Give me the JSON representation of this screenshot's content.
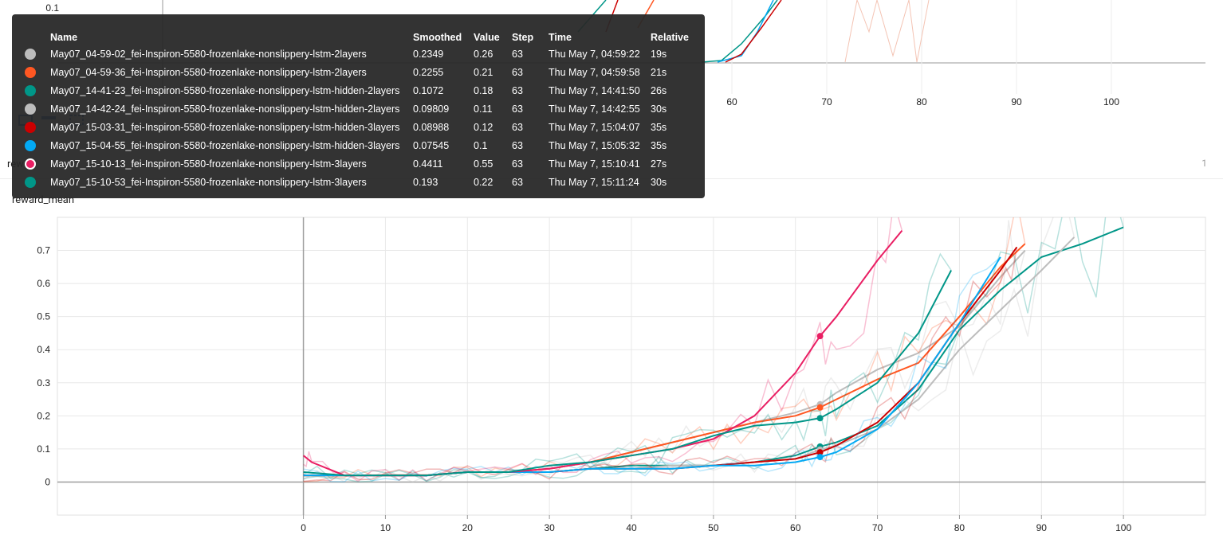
{
  "top_chart": {
    "ytick_labels": [
      "0.1"
    ],
    "xtick_labels": [
      "60",
      "70",
      "80",
      "90",
      "100"
    ],
    "xtick_values": [
      60,
      70,
      80,
      90,
      100
    ]
  },
  "bottom_chart": {
    "title": "reward_mean",
    "title_stub": "rew",
    "page_number": "1"
  },
  "tooltip": {
    "headers": {
      "name": "Name",
      "smoothed": "Smoothed",
      "value": "Value",
      "step": "Step",
      "time": "Time",
      "relative": "Relative"
    },
    "rows": [
      {
        "name": "May07_04-59-02_fei-Inspiron-5580-frozenlake-nonslippery-lstm-2layers",
        "smoothed": "0.2349",
        "value": "0.26",
        "step": "63",
        "time": "Thu May 7, 04:59:22",
        "relative": "19s",
        "color": "#bdbdbd"
      },
      {
        "name": "May07_04-59-36_fei-Inspiron-5580-frozenlake-nonslippery-lstm-2layers",
        "smoothed": "0.2255",
        "value": "0.21",
        "step": "63",
        "time": "Thu May 7, 04:59:58",
        "relative": "21s",
        "color": "#ff5722"
      },
      {
        "name": "May07_14-41-23_fei-Inspiron-5580-frozenlake-nonslippery-lstm-hidden-2layers",
        "smoothed": "0.1072",
        "value": "0.18",
        "step": "63",
        "time": "Thu May 7, 14:41:50",
        "relative": "26s",
        "color": "#009688"
      },
      {
        "name": "May07_14-42-24_fei-Inspiron-5580-frozenlake-nonslippery-lstm-hidden-2layers",
        "smoothed": "0.09809",
        "value": "0.11",
        "step": "63",
        "time": "Thu May 7, 14:42:55",
        "relative": "30s",
        "color": "#bdbdbd"
      },
      {
        "name": "May07_15-03-31_fei-Inspiron-5580-frozenlake-nonslippery-lstm-hidden-3layers",
        "smoothed": "0.08988",
        "value": "0.12",
        "step": "63",
        "time": "Thu May 7, 15:04:07",
        "relative": "35s",
        "color": "#cc0000"
      },
      {
        "name": "May07_15-04-55_fei-Inspiron-5580-frozenlake-nonslippery-lstm-hidden-3layers",
        "smoothed": "0.07545",
        "value": "0.1",
        "step": "63",
        "time": "Thu May 7, 15:05:32",
        "relative": "35s",
        "color": "#03a9f4"
      },
      {
        "name": "May07_15-10-13_fei-Inspiron-5580-frozenlake-nonslippery-lstm-3layers",
        "smoothed": "0.4411",
        "value": "0.55",
        "step": "63",
        "time": "Thu May 7, 15:10:41",
        "relative": "27s",
        "color": "#e91e63",
        "ring": true
      },
      {
        "name": "May07_15-10-53_fei-Inspiron-5580-frozenlake-nonslippery-lstm-3layers",
        "smoothed": "0.193",
        "value": "0.22",
        "step": "63",
        "time": "Thu May 7, 15:11:24",
        "relative": "30s",
        "color": "#009688"
      }
    ]
  },
  "chart_data": {
    "type": "line",
    "ylabel": "reward_mean",
    "xlim": [
      -30,
      110
    ],
    "ylim": [
      -0.1,
      0.8
    ],
    "xticks": [
      0,
      10,
      20,
      30,
      40,
      50,
      60,
      70,
      80,
      90,
      100
    ],
    "yticks": [
      0,
      0.1,
      0.2,
      0.3,
      0.4,
      0.5,
      0.6,
      0.7
    ],
    "ytick_labels": [
      "0",
      "0.1",
      "0.2",
      "0.3",
      "0.4",
      "0.5",
      "0.6",
      "0.7"
    ],
    "xtick_labels": [
      "0",
      "10",
      "20",
      "30",
      "40",
      "50",
      "60",
      "70",
      "80",
      "90",
      "100"
    ],
    "highlight_step": 63,
    "grid": true,
    "series": [
      {
        "name": "May07_04-59-02_fei-Inspiron-5580-frozenlake-nonslippery-lstm-2layers",
        "color": "#bdbdbd",
        "x": [
          0,
          5,
          10,
          15,
          20,
          25,
          30,
          35,
          40,
          45,
          50,
          55,
          60,
          63,
          65,
          70,
          75,
          80,
          85,
          88
        ],
        "y": [
          0.02,
          0.02,
          0.02,
          0.02,
          0.03,
          0.03,
          0.04,
          0.06,
          0.09,
          0.12,
          0.15,
          0.18,
          0.21,
          0.235,
          0.27,
          0.34,
          0.39,
          0.47,
          0.62,
          0.7
        ]
      },
      {
        "name": "May07_04-59-36_fei-Inspiron-5580-frozenlake-nonslippery-lstm-2layers",
        "color": "#ff5722",
        "x": [
          0,
          5,
          10,
          15,
          20,
          25,
          30,
          35,
          40,
          45,
          50,
          55,
          60,
          63,
          65,
          70,
          75,
          80,
          85,
          88
        ],
        "y": [
          0.02,
          0.02,
          0.02,
          0.02,
          0.03,
          0.03,
          0.04,
          0.06,
          0.09,
          0.12,
          0.15,
          0.18,
          0.2,
          0.2255,
          0.25,
          0.31,
          0.36,
          0.5,
          0.65,
          0.72
        ]
      },
      {
        "name": "May07_14-41-23_fei-Inspiron-5580-frozenlake-nonslippery-lstm-hidden-2layers",
        "color": "#009688",
        "x": [
          0,
          5,
          10,
          15,
          20,
          25,
          30,
          35,
          40,
          45,
          50,
          55,
          60,
          63,
          65,
          70,
          75,
          80,
          85,
          90,
          95,
          100
        ],
        "y": [
          0.02,
          0.02,
          0.02,
          0.02,
          0.03,
          0.03,
          0.03,
          0.04,
          0.05,
          0.05,
          0.05,
          0.06,
          0.08,
          0.1072,
          0.12,
          0.17,
          0.28,
          0.46,
          0.58,
          0.68,
          0.72,
          0.77
        ]
      },
      {
        "name": "May07_14-42-24_fei-Inspiron-5580-frozenlake-nonslippery-lstm-hidden-2layers",
        "color": "#bdbdbd",
        "x": [
          0,
          5,
          10,
          15,
          20,
          25,
          30,
          35,
          40,
          45,
          50,
          55,
          60,
          63,
          65,
          70,
          75,
          80,
          85,
          90,
          94
        ],
        "y": [
          0.02,
          0.02,
          0.02,
          0.02,
          0.03,
          0.03,
          0.03,
          0.04,
          0.04,
          0.05,
          0.05,
          0.06,
          0.07,
          0.098,
          0.11,
          0.16,
          0.25,
          0.4,
          0.52,
          0.64,
          0.74
        ]
      },
      {
        "name": "May07_15-03-31_fei-Inspiron-5580-frozenlake-nonslippery-lstm-hidden-3layers",
        "color": "#cc0000",
        "x": [
          0,
          5,
          10,
          15,
          20,
          25,
          30,
          35,
          40,
          45,
          50,
          55,
          60,
          63,
          65,
          70,
          75,
          80,
          85,
          87
        ],
        "y": [
          0.02,
          0.02,
          0.02,
          0.02,
          0.03,
          0.03,
          0.03,
          0.04,
          0.04,
          0.04,
          0.05,
          0.06,
          0.07,
          0.0899,
          0.11,
          0.18,
          0.3,
          0.48,
          0.64,
          0.71
        ]
      },
      {
        "name": "May07_15-04-55_fei-Inspiron-5580-frozenlake-nonslippery-lstm-hidden-3layers",
        "color": "#03a9f4",
        "x": [
          0,
          5,
          10,
          15,
          20,
          25,
          30,
          35,
          40,
          45,
          50,
          55,
          60,
          63,
          65,
          70,
          75,
          80,
          85
        ],
        "y": [
          0.02,
          0.02,
          0.02,
          0.02,
          0.03,
          0.03,
          0.03,
          0.04,
          0.04,
          0.04,
          0.05,
          0.05,
          0.06,
          0.0755,
          0.09,
          0.16,
          0.3,
          0.48,
          0.68
        ]
      },
      {
        "name": "May07_15-10-13_fei-Inspiron-5580-frozenlake-nonslippery-lstm-3layers",
        "color": "#e91e63",
        "x": [
          0,
          1,
          5,
          10,
          15,
          20,
          25,
          30,
          35,
          40,
          45,
          50,
          55,
          60,
          63,
          65,
          70,
          73
        ],
        "y": [
          0.08,
          0.06,
          0.02,
          0.02,
          0.02,
          0.03,
          0.03,
          0.04,
          0.06,
          0.08,
          0.1,
          0.13,
          0.2,
          0.33,
          0.4411,
          0.5,
          0.67,
          0.76
        ]
      },
      {
        "name": "May07_15-10-53_fei-Inspiron-5580-frozenlake-nonslippery-lstm-3layers",
        "color": "#009688",
        "x": [
          0,
          5,
          10,
          15,
          20,
          25,
          30,
          35,
          40,
          45,
          50,
          55,
          60,
          63,
          65,
          70,
          75,
          79
        ],
        "y": [
          0.03,
          0.02,
          0.02,
          0.02,
          0.03,
          0.03,
          0.05,
          0.06,
          0.08,
          0.1,
          0.14,
          0.17,
          0.18,
          0.193,
          0.22,
          0.3,
          0.45,
          0.64
        ]
      }
    ]
  }
}
